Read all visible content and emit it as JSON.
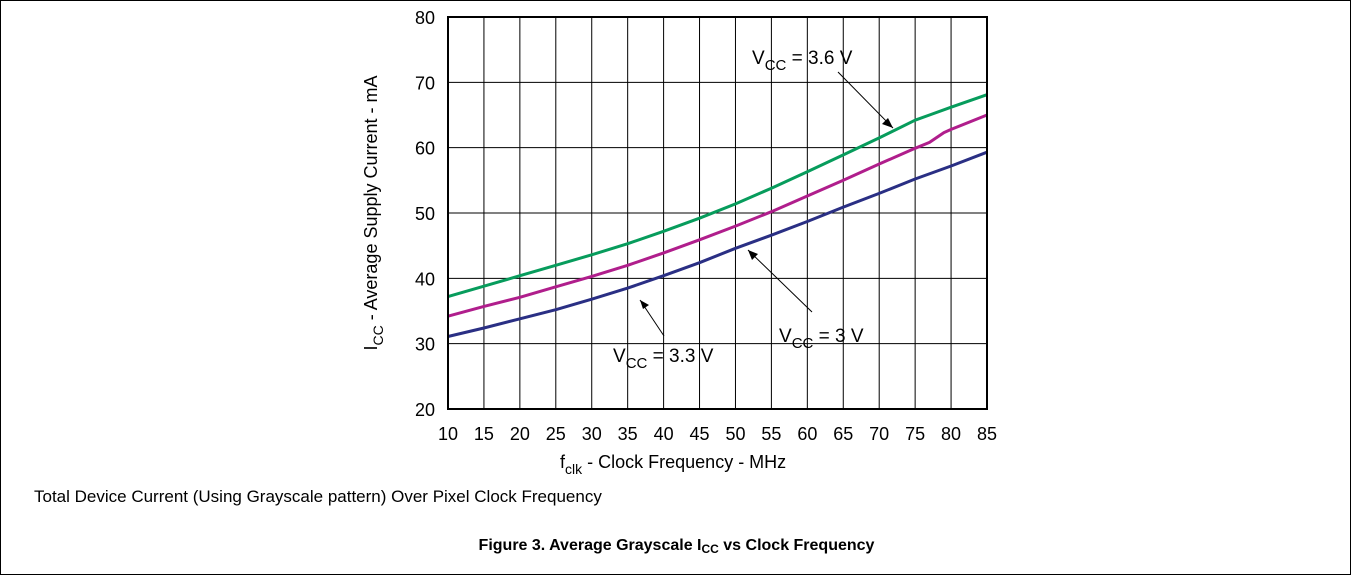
{
  "chart_data": {
    "type": "line",
    "xlabel": {
      "main": "f",
      "sub": "clk",
      "rest": " - Clock Frequency - MHz"
    },
    "ylabel": {
      "main": "I",
      "sub": "CC",
      "rest": " - Average Supply Current - mA"
    },
    "xlim": [
      10,
      85
    ],
    "ylim": [
      20,
      80
    ],
    "x_ticks": [
      10,
      15,
      20,
      25,
      30,
      35,
      40,
      45,
      50,
      55,
      60,
      65,
      70,
      75,
      80,
      85
    ],
    "y_ticks": [
      20,
      30,
      40,
      50,
      60,
      70,
      80
    ],
    "grid": true,
    "series": [
      {
        "color": "#079C5C",
        "x": [
          10,
          15,
          20,
          25,
          30,
          35,
          40,
          45,
          50,
          55,
          60,
          65,
          70,
          75,
          77,
          80,
          85
        ],
        "y": [
          37.2,
          38.8,
          40.4,
          42.0,
          43.6,
          45.3,
          47.2,
          49.2,
          51.4,
          53.8,
          56.3,
          58.9,
          61.5,
          64.2,
          65.0,
          66.2,
          68.1
        ]
      },
      {
        "color": "#B01E8C",
        "x": [
          10,
          15,
          20,
          25,
          30,
          35,
          40,
          45,
          50,
          55,
          60,
          65,
          70,
          75,
          77,
          79,
          80,
          85
        ],
        "y": [
          34.2,
          35.7,
          37.1,
          38.7,
          40.3,
          42.0,
          43.9,
          45.9,
          48.0,
          50.2,
          52.6,
          55.0,
          57.5,
          59.9,
          60.8,
          62.3,
          62.8,
          65.0
        ]
      },
      {
        "color": "#2A2F84",
        "x": [
          10,
          15,
          20,
          25,
          30,
          35,
          40,
          45,
          50,
          55,
          60,
          65,
          70,
          75,
          80,
          85
        ],
        "y": [
          31.1,
          32.4,
          33.8,
          35.2,
          36.8,
          38.5,
          40.4,
          42.4,
          44.6,
          46.6,
          48.7,
          50.9,
          53.0,
          55.2,
          57.2,
          59.3
        ]
      }
    ],
    "annotations": [
      {
        "main": "V",
        "sub": "CC",
        "rest": " = 3.6 V",
        "color": "#079C5C"
      },
      {
        "main": "V",
        "sub": "CC",
        "rest": " = 3.3 V",
        "color": "#B01E8C"
      },
      {
        "main": "V",
        "sub": "CC",
        "rest": " = 3 V",
        "color": "#2A2F84"
      }
    ]
  },
  "caption": "Total Device Current (Using Grayscale pattern) Over Pixel Clock Frequency",
  "figure_title": {
    "prefix": "Figure 3. Average Grayscale I",
    "sub": "CC",
    "suffix": " vs Clock Frequency"
  }
}
